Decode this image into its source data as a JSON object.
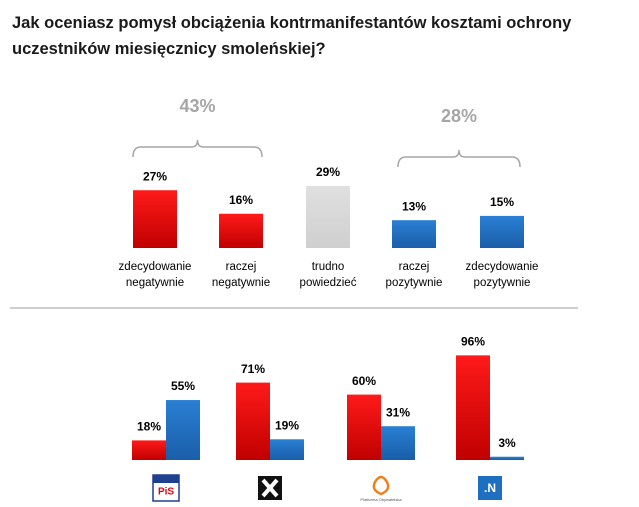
{
  "title_lines": [
    "Jak oceniasz pomysł obciążenia kontrmanifestantów kosztami ochrony",
    "uczestników miesięcznicy smoleńskiej?"
  ],
  "chart_data": [
    {
      "type": "bar",
      "categories": [
        [
          "zdecydowanie",
          "negatywnie"
        ],
        [
          "raczej",
          "negatywnie"
        ],
        [
          "trudno",
          "powiedzieć"
        ],
        [
          "raczej",
          "pozytywnie"
        ],
        [
          "zdecydowanie",
          "pozytywnie"
        ]
      ],
      "values": [
        27,
        16,
        29,
        13,
        15
      ],
      "value_labels": [
        "27%",
        "16%",
        "29%",
        "13%",
        "15%"
      ],
      "colors": [
        "#e8000b",
        "#e8000b",
        "#d9d9d9",
        "#1f6fc1",
        "#1f6fc1"
      ],
      "groups": [
        {
          "value": 43,
          "label": "43%"
        },
        {
          "value": 28,
          "label": "28%"
        }
      ]
    },
    {
      "type": "grouped_bar",
      "categories": [
        "PiS",
        null,
        "Platforma Obywatelska",
        ".N"
      ],
      "series": [
        {
          "color": "#e8000b",
          "values": [
            18,
            71,
            60,
            96
          ],
          "value_labels": [
            "18%",
            "71%",
            "60%",
            "96%"
          ]
        },
        {
          "color": "#1f6fc1",
          "values": [
            55,
            19,
            31,
            3
          ],
          "value_labels": [
            "55%",
            "19%",
            "31%",
            "3%"
          ]
        }
      ]
    }
  ]
}
